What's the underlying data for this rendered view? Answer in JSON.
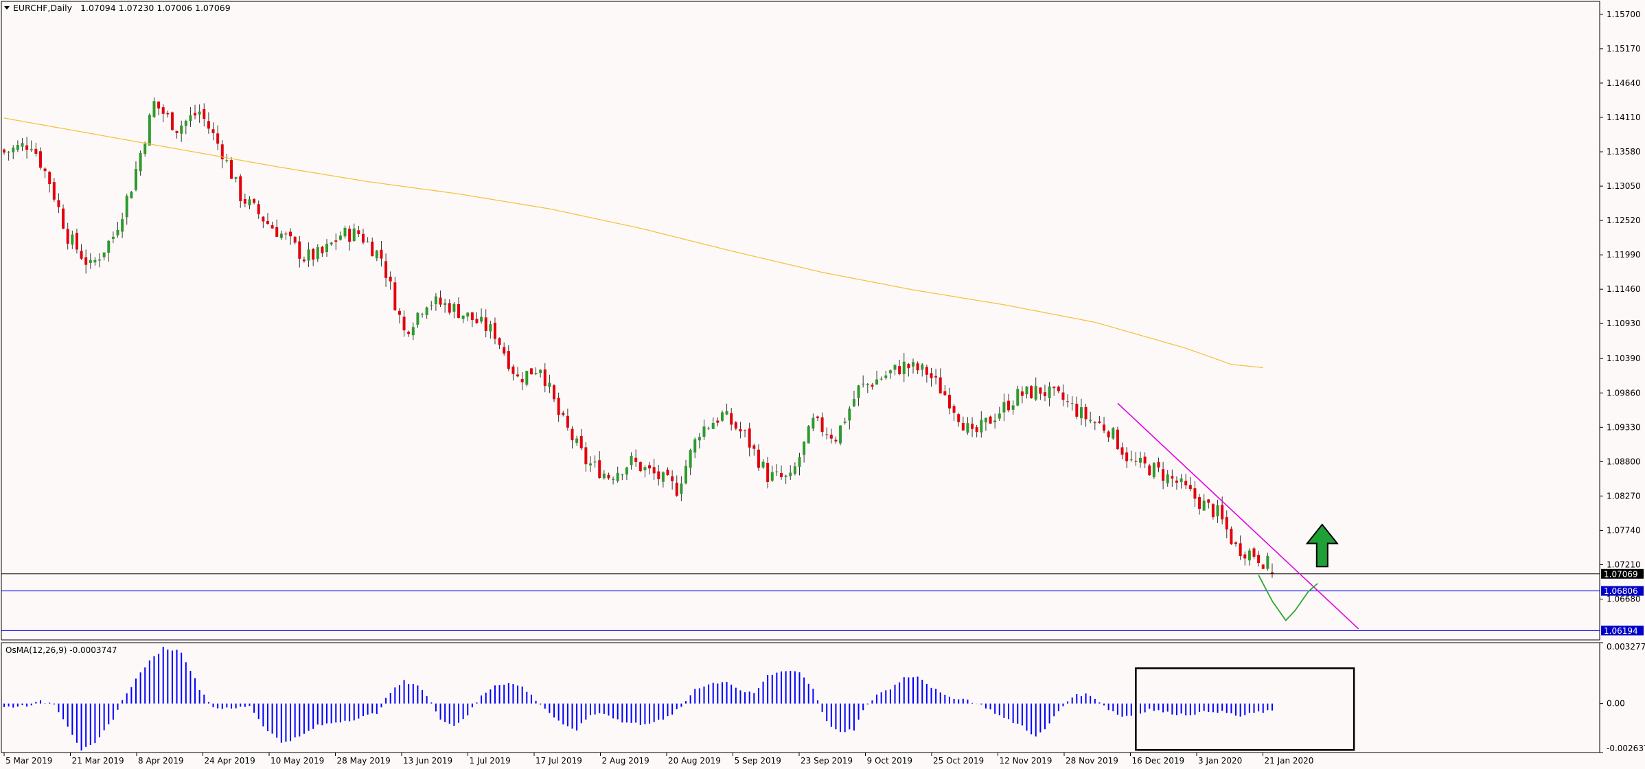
{
  "main_header": {
    "symbol": "EURCHF,Daily",
    "ohlc": "1.07094 1.07230 1.07006 1.07069"
  },
  "osc_header": {
    "label": "OsMA(12,26,9) -0.0003747"
  },
  "chart_data": {
    "type": "candlestick",
    "symbol": "EURCHF",
    "timeframe": "Daily",
    "ohlc_last": {
      "open": 1.07094,
      "high": 1.0723,
      "low": 1.07006,
      "close": 1.07069
    },
    "price_axis": {
      "ylim": [
        1.0605,
        1.159
      ],
      "ticks": [
        1.157,
        1.1517,
        1.1464,
        1.1411,
        1.1358,
        1.1305,
        1.1252,
        1.1199,
        1.1146,
        1.1093,
        1.1039,
        1.0986,
        1.0933,
        1.088,
        1.0827,
        1.0774,
        1.0721,
        1.0668
      ]
    },
    "price_tags": [
      {
        "value": "1.07069",
        "price": 1.07069,
        "bg": "#000000"
      },
      {
        "value": "1.06806",
        "price": 1.06806,
        "bg": "#0000c8"
      },
      {
        "value": "1.06194",
        "price": 1.06194,
        "bg": "#0000c8"
      }
    ],
    "x_labels": [
      "5 Mar 2019",
      "21 Mar 2019",
      "8 Apr 2019",
      "24 Apr 2019",
      "10 May 2019",
      "28 May 2019",
      "13 Jun 2019",
      "1 Jul 2019",
      "17 Jul 2019",
      "2 Aug 2019",
      "20 Aug 2019",
      "5 Sep 2019",
      "23 Sep 2019",
      "9 Oct 2019",
      "25 Oct 2019",
      "12 Nov 2019",
      "28 Nov 2019",
      "16 Dec 2019",
      "3 Jan 2020",
      "21 Jan 2020"
    ],
    "close_anchors": [
      [
        0,
        1.1357
      ],
      [
        6,
        1.1372
      ],
      [
        10,
        1.1312
      ],
      [
        14,
        1.1228
      ],
      [
        19,
        1.118
      ],
      [
        24,
        1.1228
      ],
      [
        28,
        1.1305
      ],
      [
        33,
        1.1433
      ],
      [
        38,
        1.1395
      ],
      [
        43,
        1.142
      ],
      [
        48,
        1.1358
      ],
      [
        52,
        1.129
      ],
      [
        58,
        1.1248
      ],
      [
        62,
        1.1225
      ],
      [
        66,
        1.1195
      ],
      [
        70,
        1.12
      ],
      [
        74,
        1.123
      ],
      [
        78,
        1.1232
      ],
      [
        83,
        1.1195
      ],
      [
        88,
        1.108
      ],
      [
        93,
        1.1128
      ],
      [
        98,
        1.112
      ],
      [
        103,
        1.11
      ],
      [
        108,
        1.1078
      ],
      [
        113,
        1.1008
      ],
      [
        118,
        1.1028
      ],
      [
        122,
        1.0952
      ],
      [
        128,
        1.088
      ],
      [
        133,
        1.0858
      ],
      [
        138,
        1.088
      ],
      [
        143,
        1.086
      ],
      [
        148,
        1.0838
      ],
      [
        153,
        1.0928
      ],
      [
        158,
        1.0952
      ],
      [
        163,
        1.092
      ],
      [
        168,
        1.0858
      ],
      [
        173,
        1.0852
      ],
      [
        178,
        1.094
      ],
      [
        183,
        1.0918
      ],
      [
        188,
        1.0992
      ],
      [
        193,
        1.101
      ],
      [
        198,
        1.1028
      ],
      [
        203,
        1.1018
      ],
      [
        208,
        1.0975
      ],
      [
        213,
        1.0918
      ],
      [
        218,
        1.0952
      ],
      [
        223,
        1.0982
      ],
      [
        228,
        1.099
      ],
      [
        233,
        1.0975
      ],
      [
        238,
        1.0948
      ],
      [
        243,
        1.093
      ],
      [
        248,
        1.0878
      ],
      [
        253,
        1.0868
      ],
      [
        258,
        1.0848
      ],
      [
        263,
        1.0818
      ],
      [
        267,
        1.08
      ],
      [
        271,
        1.0748
      ],
      [
        275,
        1.0738
      ],
      [
        278,
        1.0722
      ],
      [
        279,
        1.07069
      ]
    ],
    "series": [
      {
        "name": "",
        "type": "moving-average",
        "color": "#f5c243",
        "points": [
          [
            0,
            1.141
          ],
          [
            20,
            1.1385
          ],
          [
            40,
            1.136
          ],
          [
            60,
            1.1335
          ],
          [
            80,
            1.1312
          ],
          [
            100,
            1.1293
          ],
          [
            120,
            1.127
          ],
          [
            140,
            1.124
          ],
          [
            160,
            1.1205
          ],
          [
            180,
            1.1172
          ],
          [
            200,
            1.1145
          ],
          [
            220,
            1.1122
          ],
          [
            240,
            1.1095
          ],
          [
            260,
            1.1055
          ],
          [
            270,
            1.103
          ],
          [
            277,
            1.1025
          ]
        ]
      }
    ],
    "trendline": {
      "color": "#e300e3",
      "from": [
        245,
        1.097
      ],
      "to": [
        298,
        1.0622
      ]
    },
    "horizontal_lines": [
      {
        "price": 1.07069,
        "color": "#000000"
      },
      {
        "price": 1.06806,
        "color": "#0000ff"
      },
      {
        "price": 1.06194,
        "color": "#0000ff"
      }
    ],
    "projection": {
      "color": "#2fa52f",
      "points": [
        [
          276,
          1.0705
        ],
        [
          279,
          1.0665
        ],
        [
          282,
          1.0635
        ],
        [
          284,
          1.065
        ],
        [
          287,
          1.068
        ],
        [
          289,
          1.0692
        ]
      ]
    },
    "arrow": {
      "direction": "up",
      "color": "#1fa037",
      "bar": 290,
      "price_tip": 1.0783,
      "price_base": 1.0718
    },
    "candle_colors": {
      "up": "#2e9a2e",
      "down": "#e3000b",
      "wick": "#333333"
    },
    "oscillator": {
      "name": "OsMA",
      "params": "12,26,9",
      "last_value": -0.0003747,
      "ylim": [
        -0.0026378,
        0.0032772
      ],
      "ticks": [
        0.0032772,
        0.0,
        -0.0026378
      ],
      "tick_labels": [
        "0.0032772",
        "0.00",
        "-0.0026378"
      ],
      "color": "#0000ff",
      "anchors": [
        [
          0,
          -0.0002
        ],
        [
          5,
          -0.0001
        ],
        [
          8,
          0.0001
        ],
        [
          11,
          0.0
        ],
        [
          14,
          -0.0012
        ],
        [
          17,
          -0.0025
        ],
        [
          20,
          -0.0022
        ],
        [
          24,
          -0.0008
        ],
        [
          27,
          0.0006
        ],
        [
          31,
          0.002
        ],
        [
          35,
          0.003
        ],
        [
          39,
          0.0028
        ],
        [
          43,
          0.0008
        ],
        [
          46,
          -0.0002
        ],
        [
          50,
          -0.0003
        ],
        [
          54,
          -0.0001
        ],
        [
          57,
          -0.0012
        ],
        [
          61,
          -0.0021
        ],
        [
          65,
          -0.0018
        ],
        [
          69,
          -0.0012
        ],
        [
          73,
          -0.001
        ],
        [
          78,
          -0.0008
        ],
        [
          82,
          -0.0005
        ],
        [
          85,
          0.0006
        ],
        [
          88,
          0.0012
        ],
        [
          91,
          0.001
        ],
        [
          93,
          0.0004
        ],
        [
          96,
          -0.0008
        ],
        [
          99,
          -0.0012
        ],
        [
          102,
          -0.0006
        ],
        [
          105,
          0.0004
        ],
        [
          108,
          0.001
        ],
        [
          111,
          0.0011
        ],
        [
          114,
          0.0009
        ],
        [
          117,
          0.0002
        ],
        [
          120,
          -0.0005
        ],
        [
          123,
          -0.0012
        ],
        [
          126,
          -0.0014
        ],
        [
          129,
          -0.0006
        ],
        [
          132,
          -0.0005
        ],
        [
          136,
          -0.001
        ],
        [
          140,
          -0.0011
        ],
        [
          145,
          -0.0009
        ],
        [
          149,
          -0.0002
        ],
        [
          152,
          0.0008
        ],
        [
          156,
          0.0011
        ],
        [
          159,
          0.0012
        ],
        [
          162,
          0.0007
        ],
        [
          165,
          0.0005
        ],
        [
          168,
          0.0015
        ],
        [
          172,
          0.0018
        ],
        [
          175,
          0.0017
        ],
        [
          178,
          0.0008
        ],
        [
          181,
          -0.001
        ],
        [
          184,
          -0.0016
        ],
        [
          187,
          -0.0014
        ],
        [
          189,
          -0.0004
        ],
        [
          192,
          0.0005
        ],
        [
          195,
          0.0008
        ],
        [
          198,
          0.0014
        ],
        [
          201,
          0.0015
        ],
        [
          204,
          0.0009
        ],
        [
          207,
          0.0004
        ],
        [
          212,
          0.0002
        ],
        [
          216,
          -0.0002
        ],
        [
          220,
          -0.0008
        ],
        [
          224,
          -0.0012
        ],
        [
          227,
          -0.0018
        ],
        [
          229,
          -0.0014
        ],
        [
          232,
          -0.0004
        ],
        [
          235,
          0.0004
        ],
        [
          238,
          0.0005
        ],
        [
          240,
          0.0003
        ],
        [
          243,
          -0.0003
        ],
        [
          246,
          -0.0007
        ],
        [
          249,
          -0.0006
        ],
        [
          252,
          -0.0003
        ],
        [
          256,
          -0.0005
        ],
        [
          260,
          -0.0006
        ],
        [
          263,
          -0.0005
        ],
        [
          266,
          -0.0004
        ],
        [
          269,
          -0.0005
        ],
        [
          272,
          -0.0007
        ],
        [
          275,
          -0.0005
        ],
        [
          279,
          -0.0004
        ]
      ]
    },
    "oscillator_box": {
      "from_bar": 249,
      "to_bar": 297,
      "top": 0.0019,
      "bottom": -0.0025,
      "color": "#000000"
    }
  }
}
